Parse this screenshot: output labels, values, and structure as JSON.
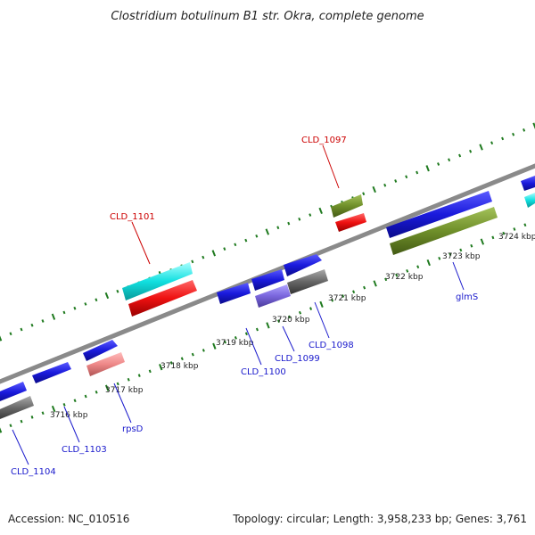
{
  "title": "Clostridium botulinum B1 str. Okra, complete genome",
  "footer": {
    "accession": "Accession: NC_010516",
    "topology": "Topology: circular; Length: 3,958,233 bp; Genes: 3,761"
  },
  "colors": {
    "backbone": "#8a8a8a",
    "tick": "#1f7a1f",
    "blue_gene": "#1a1adc",
    "red_gene": "#ee1111",
    "cyan_gene": "#11e0e0",
    "olive_gene": "#6f8f2a",
    "gray_gene": "#666666",
    "purple_gene": "#7a66dd",
    "pink_gene": "#ee8888",
    "label_red": "#cc0000",
    "label_blue": "#1a1acc"
  },
  "ticks": [
    {
      "label": "3716 kbp"
    },
    {
      "label": "3717 kbp"
    },
    {
      "label": "3718 kbp"
    },
    {
      "label": "3719 kbp"
    },
    {
      "label": "3720 kbp"
    },
    {
      "label": "3721 kbp"
    },
    {
      "label": "3722 kbp"
    },
    {
      "label": "3723 kbp"
    },
    {
      "label": "3724 kbp"
    }
  ],
  "gene_labels": [
    {
      "text": "CLD_1097",
      "color": "label_red"
    },
    {
      "text": "CLD_1101",
      "color": "label_red"
    },
    {
      "text": "CLD_1098",
      "color": "label_blue"
    },
    {
      "text": "CLD_1099",
      "color": "label_blue"
    },
    {
      "text": "CLD_1100",
      "color": "label_blue"
    },
    {
      "text": "glmS",
      "color": "label_blue"
    },
    {
      "text": "rpsD",
      "color": "label_blue"
    },
    {
      "text": "CLD_1103",
      "color": "label_blue"
    },
    {
      "text": "CLD_1104",
      "color": "label_blue"
    }
  ]
}
